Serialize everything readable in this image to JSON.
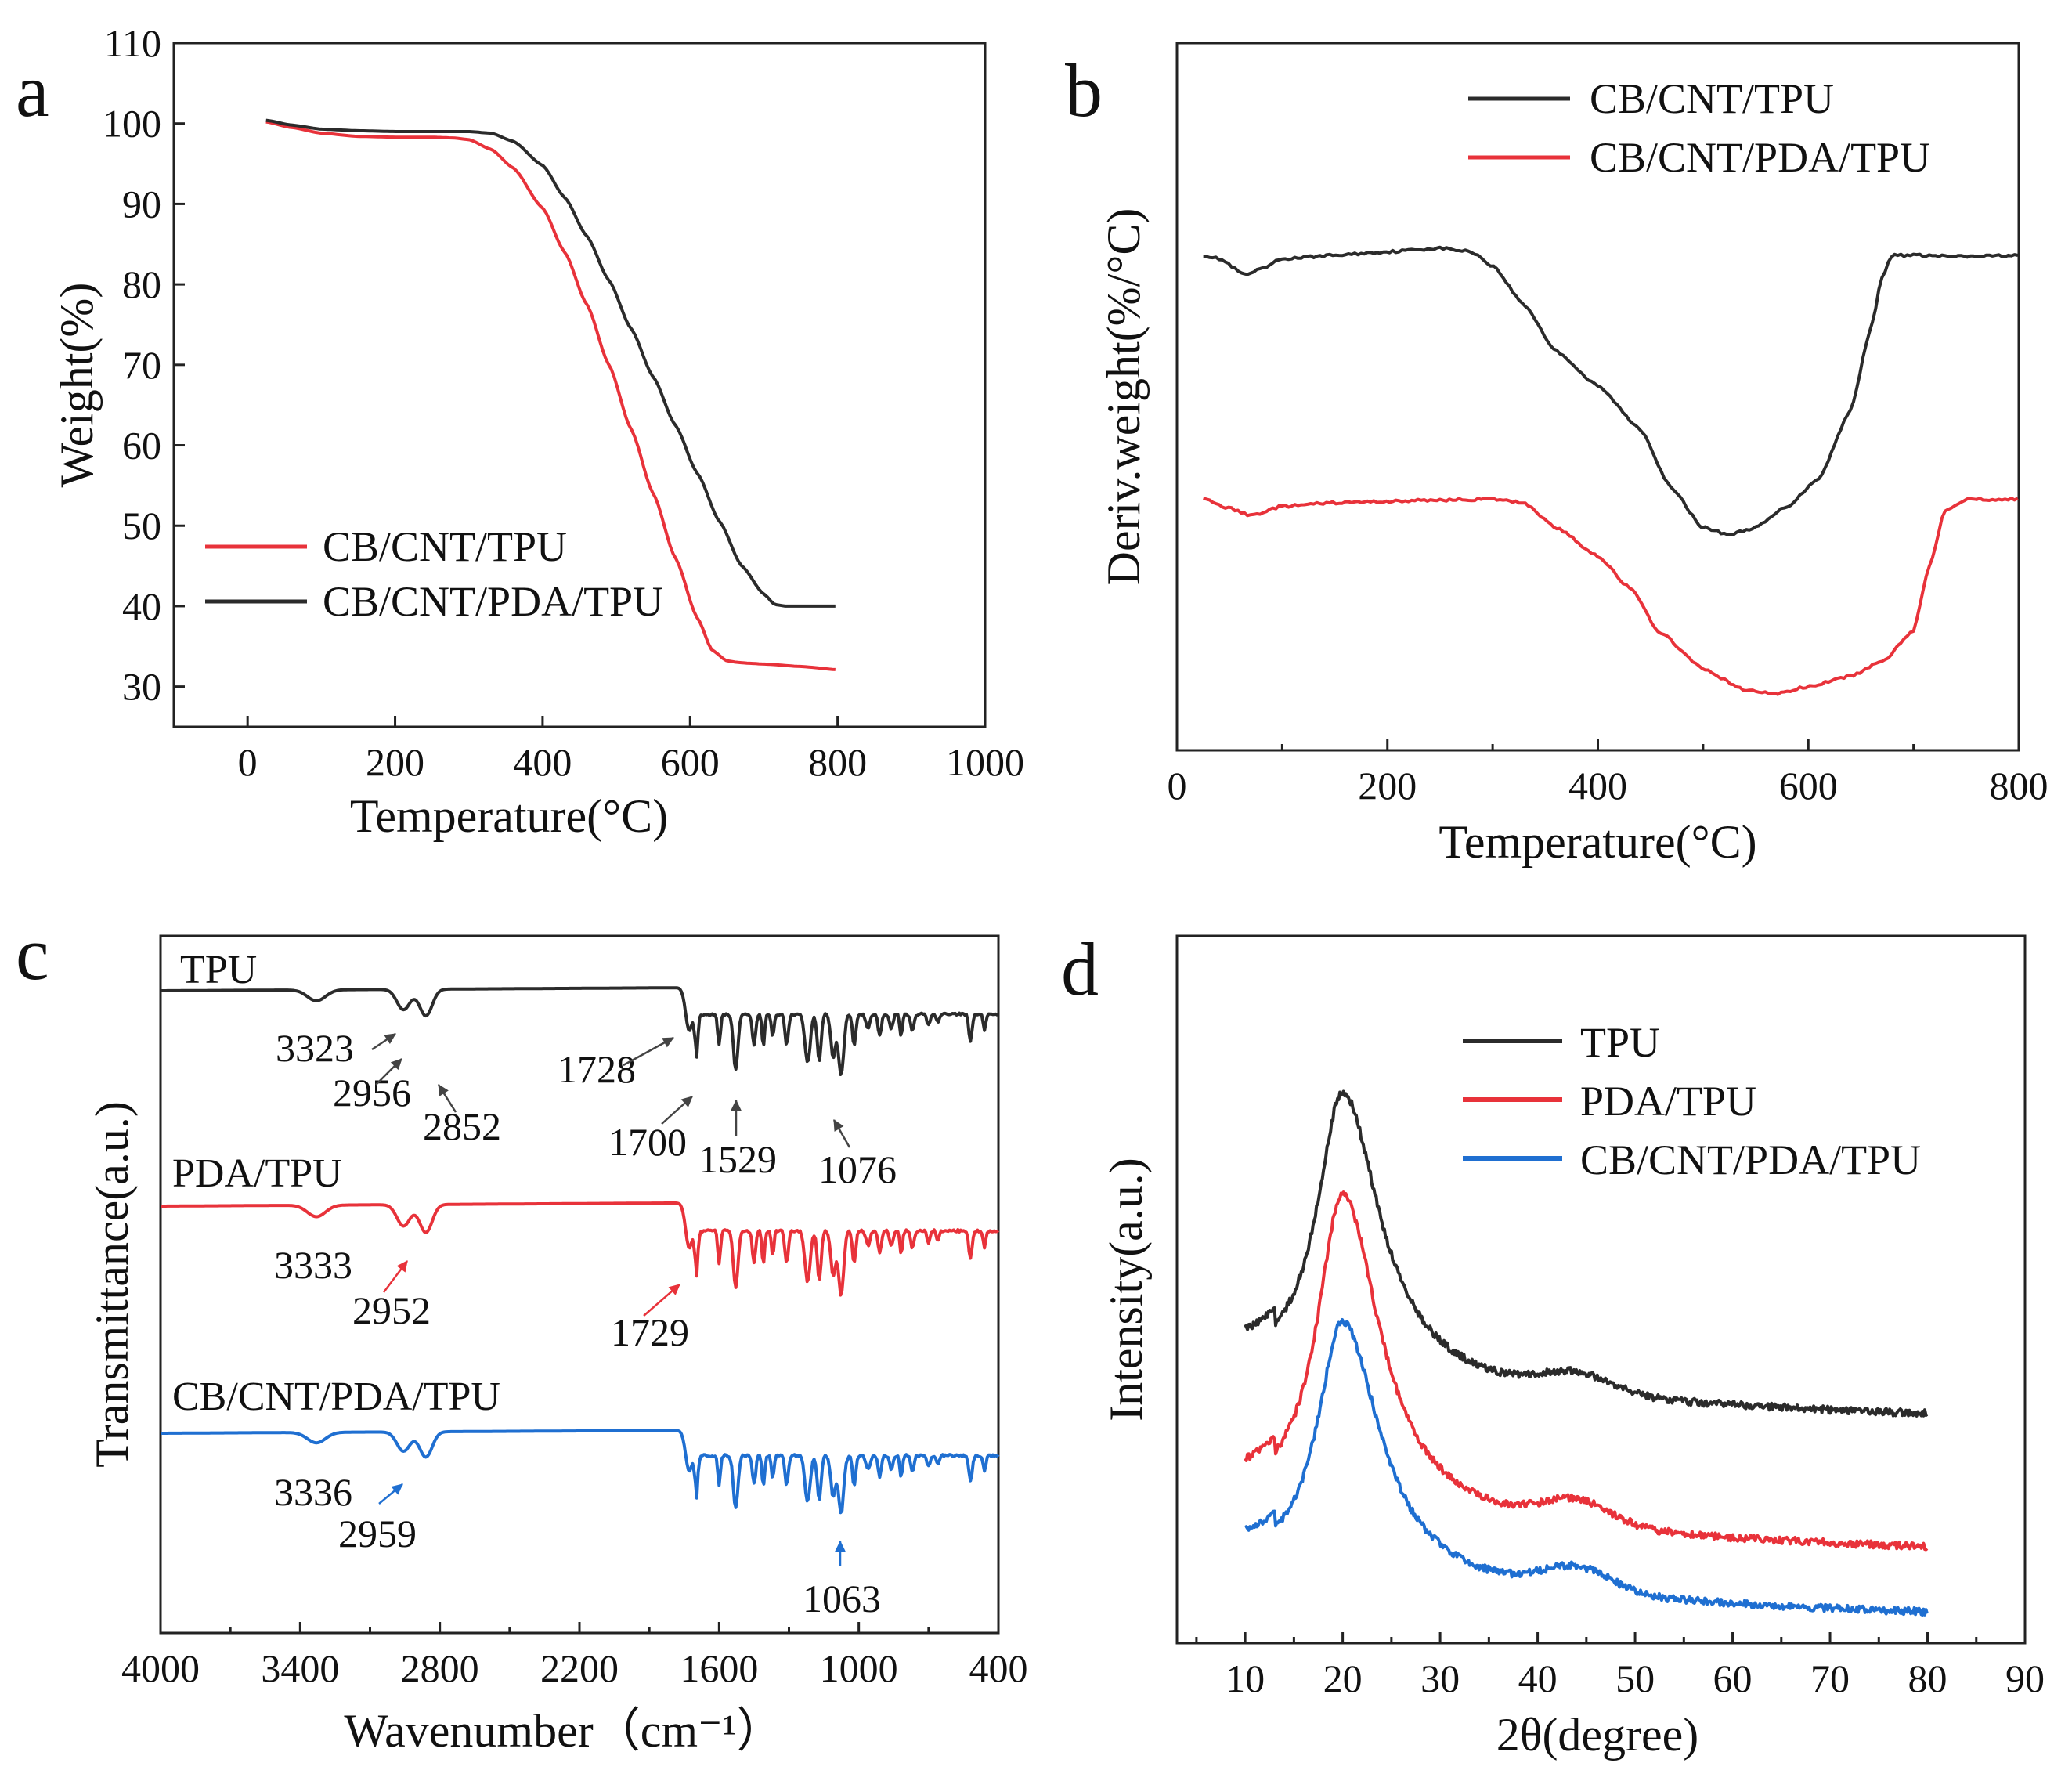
{
  "colors": {
    "black": "#2b2b2b",
    "red": "#e8323a",
    "blue": "#1f6fd1"
  },
  "chart_data": [
    {
      "panel": "a",
      "type": "line",
      "xlabel": "Temperature(°C)",
      "ylabel": "Weight(%)",
      "xlim": [
        -100,
        1000
      ],
      "ylim": [
        25,
        110
      ],
      "xticks": [
        0,
        200,
        400,
        600,
        800,
        1000
      ],
      "yticks": [
        30,
        40,
        50,
        60,
        70,
        80,
        90,
        100,
        110
      ],
      "legend_position": "bottom-left",
      "series": [
        {
          "name": "CB/CNT/TPU",
          "color": "red",
          "x": [
            25,
            60,
            100,
            150,
            200,
            250,
            280,
            300,
            330,
            360,
            400,
            430,
            460,
            490,
            520,
            550,
            580,
            610,
            630,
            650,
            665,
            680,
            700,
            750,
            800
          ],
          "y": [
            100.2,
            99.5,
            98.8,
            98.4,
            98.3,
            98.3,
            98.2,
            98.0,
            96.8,
            94.5,
            89.5,
            84,
            77.5,
            70,
            62,
            54,
            46,
            38.5,
            34.5,
            33.2,
            33.0,
            32.9,
            32.8,
            32.5,
            32.1
          ]
        },
        {
          "name": "CB/CNT/PDA/TPU",
          "color": "black",
          "x": [
            25,
            60,
            100,
            150,
            200,
            250,
            300,
            330,
            360,
            400,
            430,
            460,
            490,
            520,
            550,
            580,
            610,
            640,
            670,
            700,
            715,
            730,
            750,
            800
          ],
          "y": [
            100.4,
            99.8,
            99.3,
            99.1,
            99.0,
            99.0,
            99.0,
            98.8,
            97.8,
            94.8,
            90.8,
            86,
            80.5,
            74.5,
            68.5,
            62.5,
            56.5,
            50.5,
            45,
            41.5,
            40.2,
            40.0,
            40.0,
            40.0
          ]
        }
      ]
    },
    {
      "panel": "b",
      "type": "line",
      "xlabel": "Temperature(°C)",
      "ylabel": "Deriv.weight(%/°C)",
      "xlim": [
        0,
        800
      ],
      "ylim": [
        0,
        100
      ],
      "xticks": [
        0,
        200,
        400,
        600,
        800
      ],
      "legend_position": "top-right",
      "series": [
        {
          "name": "CB/CNT/TPU",
          "color": "black",
          "x": [
            25,
            40,
            65,
            80,
            100,
            150,
            200,
            250,
            280,
            300,
            330,
            360,
            400,
            440,
            470,
            500,
            525,
            550,
            580,
            610,
            640,
            660,
            670,
            680,
            700,
            750,
            800
          ],
          "y": [
            70,
            69.5,
            67.2,
            68,
            69.5,
            70,
            70.5,
            71,
            70.5,
            68.5,
            63,
            56.5,
            51.5,
            45.5,
            37,
            31.5,
            30.5,
            31.5,
            34.5,
            38.5,
            48,
            60,
            67,
            70,
            70,
            69.8,
            70
          ]
        },
        {
          "name": "CB/CNT/PDA/TPU",
          "color": "red",
          "x": [
            25,
            50,
            70,
            100,
            150,
            200,
            250,
            300,
            330,
            360,
            400,
            430,
            460,
            500,
            540,
            570,
            600,
            640,
            670,
            700,
            715,
            730,
            750,
            800
          ],
          "y": [
            35.5,
            34.2,
            33.2,
            34.5,
            35,
            35.2,
            35.4,
            35.5,
            35,
            31.5,
            27.5,
            23,
            16.5,
            11.5,
            8.5,
            8,
            9,
            10.5,
            12.5,
            17,
            26,
            34,
            35.5,
            35.5
          ]
        }
      ]
    },
    {
      "panel": "c",
      "type": "line",
      "xlabel": "Wavenumber（cm⁻¹）",
      "ylabel": "Transmittance(a.u.)",
      "xlim": [
        4000,
        400
      ],
      "x_reversed": true,
      "xticks": [
        4000,
        3400,
        2800,
        2200,
        1600,
        1000,
        400
      ],
      "series": [
        {
          "name": "TPU",
          "color": "black",
          "peaks": [
            3323,
            2956,
            2852,
            1728,
            1700,
            1529,
            1076
          ]
        },
        {
          "name": "PDA/TPU",
          "color": "red",
          "peaks": [
            3333,
            2952,
            1729
          ]
        },
        {
          "name": "CB/CNT/PDA/TPU",
          "color": "blue",
          "peaks": [
            3336,
            2959,
            1063
          ]
        }
      ]
    },
    {
      "panel": "d",
      "type": "line",
      "xlabel": "2θ(degree)",
      "ylabel": "Intensity(a.u.)",
      "xlim": [
        3,
        90
      ],
      "xticks": [
        10,
        20,
        30,
        40,
        50,
        60,
        70,
        80,
        90
      ],
      "legend_position": "top-right",
      "series": [
        {
          "name": "TPU",
          "color": "black",
          "peak_2theta": 20,
          "offset": 190,
          "peak_height": 370,
          "hump": 8
        },
        {
          "name": "PDA/TPU",
          "color": "red",
          "peak_2theta": 20,
          "offset": 95,
          "peak_height": 410,
          "hump": 10
        },
        {
          "name": "CB/CNT/PDA/TPU",
          "color": "blue",
          "peak_2theta": 20,
          "offset": 20,
          "peak_height": 330,
          "hump": 10
        }
      ]
    }
  ]
}
